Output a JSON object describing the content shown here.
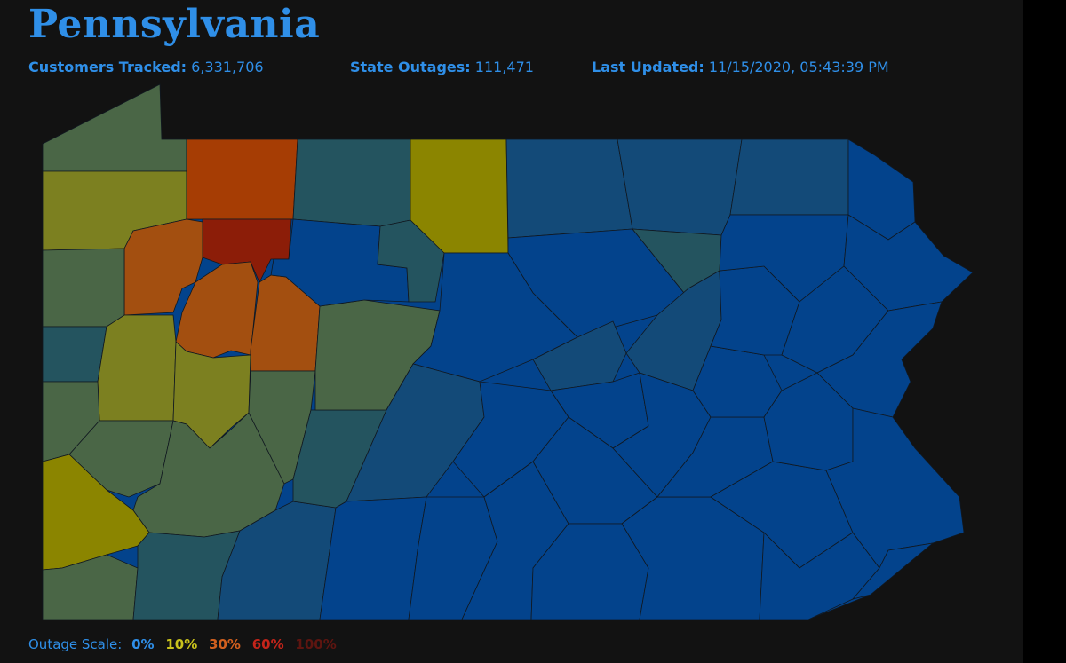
{
  "title": "Pennsylvania",
  "stats": {
    "customers_label": "Customers Tracked:",
    "customers_value": "6,331,706",
    "outages_label": "State Outages:",
    "outages_value": "111,471",
    "updated_label": "Last Updated:",
    "updated_value": "11/15/2020, 05:43:39 PM"
  },
  "legend": {
    "label": "Outage Scale:",
    "steps": [
      {
        "text": "0%",
        "color": "#2f8fe8"
      },
      {
        "text": "10%",
        "color": "#c9c21c"
      },
      {
        "text": "30%",
        "color": "#d2601e"
      },
      {
        "text": "60%",
        "color": "#c4241a"
      },
      {
        "text": "100%",
        "color": "#5e1510"
      }
    ]
  },
  "colors": {
    "none": "#03438c",
    "low": "#134a78",
    "low_mid": "#24545f",
    "mid": "#4a6646",
    "ten": "#7c8020",
    "ten_high": "#8b8500",
    "thirty": "#a34f10",
    "thirty_high": "#a63d04",
    "sixty": "#8c1d08",
    "background": "#121212",
    "accent": "#2f8fe8"
  }
}
